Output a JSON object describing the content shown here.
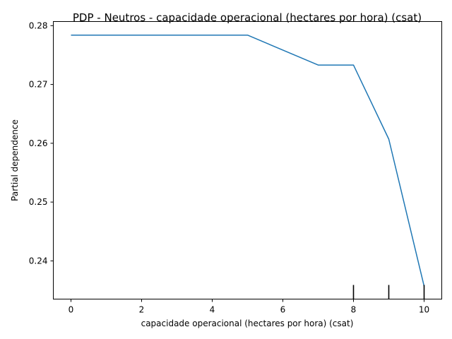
{
  "chart_data": {
    "type": "line",
    "title": "PDP - Neutros - capacidade operacional (hectares por hora) (csat)",
    "xlabel": "capacidade operacional (hectares por hora) (csat)",
    "ylabel": "Partial dependence",
    "xlim": [
      -0.5,
      10.5
    ],
    "ylim": [
      0.2335,
      0.2807
    ],
    "x_ticks": [
      0,
      2,
      4,
      6,
      8,
      10
    ],
    "x_tick_labels": [
      "0",
      "2",
      "4",
      "6",
      "8",
      "10"
    ],
    "y_ticks": [
      0.24,
      0.25,
      0.26,
      0.27,
      0.28
    ],
    "y_tick_labels": [
      "0.24",
      "0.25",
      "0.26",
      "0.27",
      "0.28"
    ],
    "grid": false,
    "series": [
      {
        "color": "#1f77b4",
        "x": [
          0,
          5,
          7,
          8,
          9,
          10
        ],
        "y": [
          0.2784,
          0.2784,
          0.2733,
          0.2733,
          0.2607,
          0.2357
        ]
      }
    ],
    "rug": [
      8,
      9,
      10
    ]
  }
}
